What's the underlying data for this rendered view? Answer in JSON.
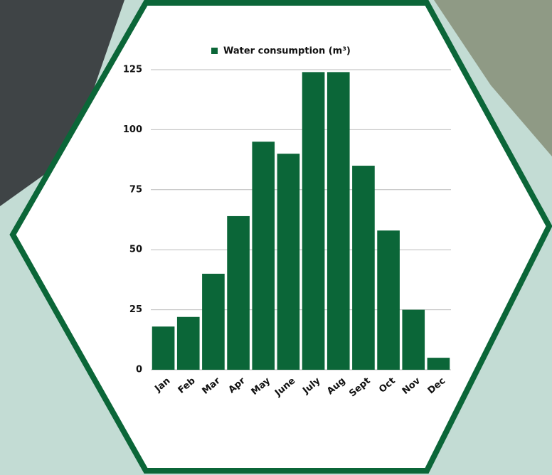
{
  "chart_data": {
    "type": "bar",
    "legend_label": "Water consumption (m³)",
    "categories": [
      "Jan",
      "Feb",
      "Mar",
      "Apr",
      "May",
      "June",
      "July",
      "Aug",
      "Sept",
      "Oct",
      "Nov",
      "Dec"
    ],
    "values": [
      18,
      22,
      40,
      64,
      95,
      90,
      124,
      124,
      85,
      58,
      25,
      5
    ],
    "color": "#0b6638",
    "ylim": [
      0,
      125
    ],
    "yticks": [
      0,
      25,
      50,
      75,
      100,
      125
    ],
    "grid": true
  }
}
